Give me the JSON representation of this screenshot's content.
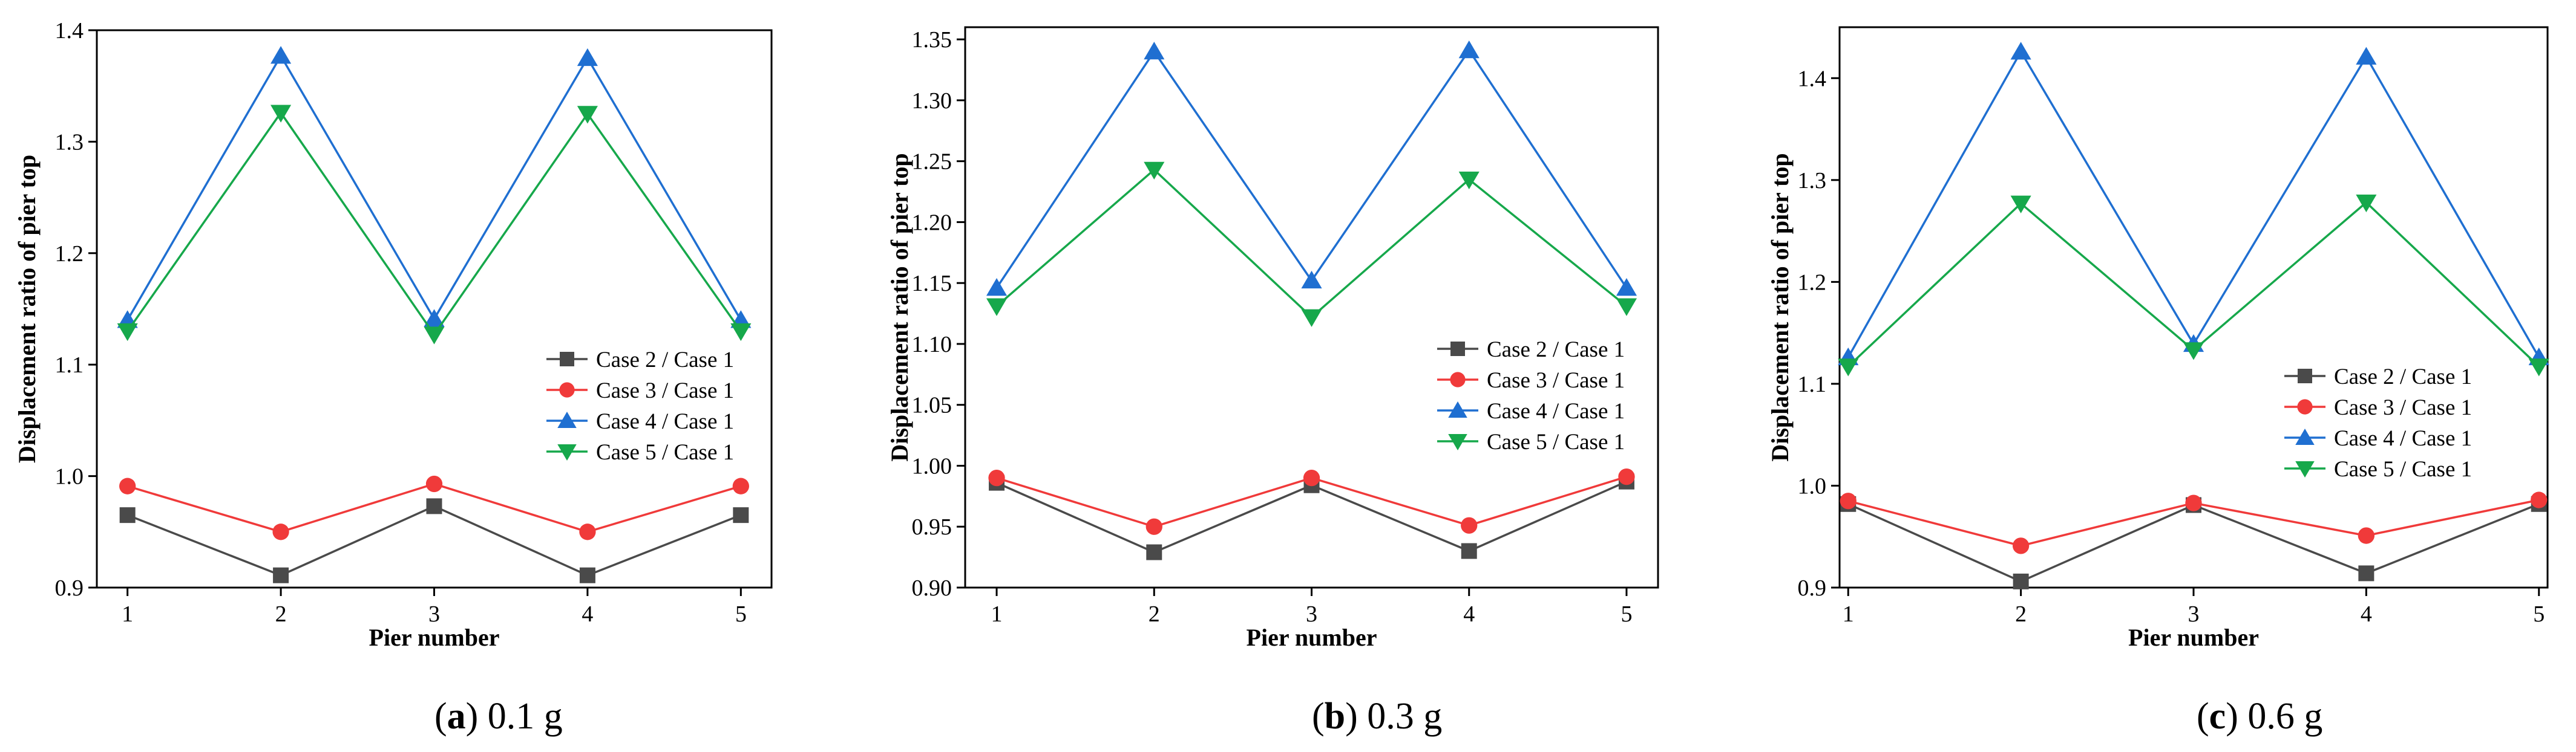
{
  "chart_data": [
    {
      "type": "line",
      "title": "",
      "caption_label": "a",
      "caption_text": "0.1 g",
      "xlabel": "Pier number",
      "ylabel": "Displacement ratio of pier top",
      "x": [
        1,
        2,
        3,
        4,
        5
      ],
      "x_tick_labels": [
        "1",
        "2",
        "3",
        "4",
        "5"
      ],
      "xlim": [
        0.8,
        5.2
      ],
      "ylim": [
        0.9,
        1.4
      ],
      "y_ticks": [
        0.9,
        1.0,
        1.1,
        1.2,
        1.3,
        1.4
      ],
      "y_tick_labels": [
        "0.9",
        "1.0",
        "1.1",
        "1.2",
        "1.3",
        "1.4"
      ],
      "legend_position": "lower-right of upper series",
      "series": [
        {
          "name": "Case 2 / Case 1",
          "marker": "square",
          "color": "#4a4a4a",
          "values": [
            0.965,
            0.911,
            0.973,
            0.911,
            0.965
          ]
        },
        {
          "name": "Case 3 / Case 1",
          "marker": "circle",
          "color": "#f03a3a",
          "values": [
            0.991,
            0.95,
            0.993,
            0.95,
            0.991
          ]
        },
        {
          "name": "Case 4 / Case 1",
          "marker": "triangle-up",
          "color": "#1f6fd1",
          "values": [
            1.14,
            1.377,
            1.141,
            1.375,
            1.14
          ]
        },
        {
          "name": "Case 5 / Case 1",
          "marker": "triangle-down",
          "color": "#16a84b",
          "values": [
            1.13,
            1.326,
            1.127,
            1.325,
            1.13
          ]
        }
      ]
    },
    {
      "type": "line",
      "title": "",
      "caption_label": "b",
      "caption_text": "0.3 g",
      "xlabel": "Pier number",
      "ylabel": "Displacement ratio of pier top",
      "x": [
        1,
        2,
        3,
        4,
        5
      ],
      "x_tick_labels": [
        "1",
        "2",
        "3",
        "4",
        "5"
      ],
      "xlim": [
        0.8,
        5.2
      ],
      "ylim": [
        0.9,
        1.36
      ],
      "y_ticks": [
        0.9,
        0.95,
        1.0,
        1.05,
        1.1,
        1.15,
        1.2,
        1.25,
        1.3,
        1.35
      ],
      "y_tick_labels": [
        "0.90",
        "0.95",
        "1.00",
        "1.05",
        "1.10",
        "1.15",
        "1.20",
        "1.25",
        "1.30",
        "1.35"
      ],
      "legend_position": "right, middle",
      "series": [
        {
          "name": "Case 2 / Case 1",
          "marker": "square",
          "color": "#4a4a4a",
          "values": [
            0.986,
            0.929,
            0.984,
            0.93,
            0.987
          ]
        },
        {
          "name": "Case 3 / Case 1",
          "marker": "circle",
          "color": "#f03a3a",
          "values": [
            0.99,
            0.95,
            0.99,
            0.951,
            0.991
          ]
        },
        {
          "name": "Case 4 / Case 1",
          "marker": "triangle-up",
          "color": "#1f6fd1",
          "values": [
            1.146,
            1.34,
            1.152,
            1.341,
            1.146
          ]
        },
        {
          "name": "Case 5 / Case 1",
          "marker": "triangle-down",
          "color": "#16a84b",
          "values": [
            1.131,
            1.243,
            1.122,
            1.235,
            1.131
          ]
        }
      ]
    },
    {
      "type": "line",
      "title": "",
      "caption_label": "c",
      "caption_text": "0.6 g",
      "xlabel": "Pier number",
      "ylabel": "Displacement ratio of pier top",
      "x": [
        1,
        2,
        3,
        4,
        5
      ],
      "x_tick_labels": [
        "1",
        "2",
        "3",
        "4",
        "5"
      ],
      "xlim": [
        0.95,
        5.05
      ],
      "ylim": [
        0.9,
        1.45
      ],
      "y_ticks": [
        0.9,
        1.0,
        1.1,
        1.2,
        1.3,
        1.4
      ],
      "y_tick_labels": [
        "0.9",
        "1.0",
        "1.1",
        "1.2",
        "1.3",
        "1.4"
      ],
      "legend_position": "lower-right of upper series",
      "series": [
        {
          "name": "Case 2 / Case 1",
          "marker": "square",
          "color": "#4a4a4a",
          "values": [
            0.982,
            0.906,
            0.981,
            0.914,
            0.982
          ]
        },
        {
          "name": "Case 3 / Case 1",
          "marker": "circle",
          "color": "#f03a3a",
          "values": [
            0.985,
            0.941,
            0.983,
            0.951,
            0.986
          ]
        },
        {
          "name": "Case 4 / Case 1",
          "marker": "triangle-up",
          "color": "#1f6fd1",
          "values": [
            1.126,
            1.426,
            1.139,
            1.421,
            1.126
          ]
        },
        {
          "name": "Case 5 / Case 1",
          "marker": "triangle-down",
          "color": "#16a84b",
          "values": [
            1.117,
            1.277,
            1.133,
            1.278,
            1.117
          ]
        }
      ]
    }
  ]
}
